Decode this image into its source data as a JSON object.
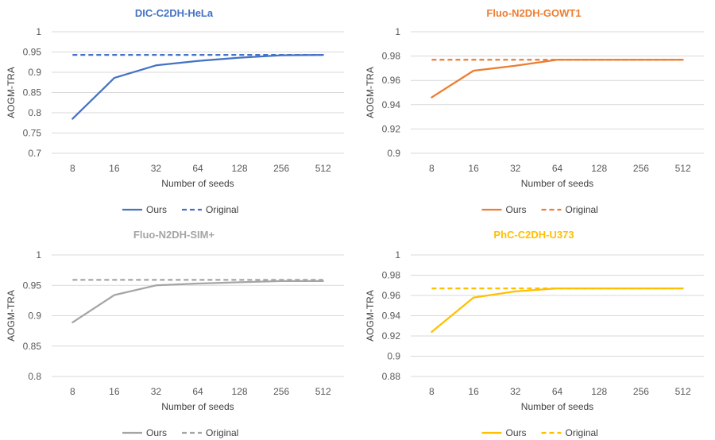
{
  "chart_data": [
    {
      "type": "line",
      "title": "DIC-C2DH-HeLa",
      "color": "#4472C4",
      "categories": [
        "8",
        "16",
        "32",
        "64",
        "128",
        "256",
        "512"
      ],
      "xlabel": "Number of seeds",
      "ylabel": "AOGM-TRA",
      "ylim": [
        0.7,
        1.0
      ],
      "yticks": [
        "0.7",
        "0.75",
        "0.8",
        "0.85",
        "0.9",
        "0.95",
        "1"
      ],
      "series": [
        {
          "name": "Ours",
          "style": "solid",
          "values": [
            0.785,
            0.886,
            0.917,
            0.928,
            0.936,
            0.942,
            0.943
          ]
        },
        {
          "name": "Original",
          "style": "dashed",
          "values": [
            0.943,
            0.943,
            0.943,
            0.943,
            0.943,
            0.943,
            0.943
          ]
        }
      ]
    },
    {
      "type": "line",
      "title": "Fluo-N2DH-GOWT1",
      "color": "#ED7D31",
      "categories": [
        "8",
        "16",
        "32",
        "64",
        "128",
        "256",
        "512"
      ],
      "xlabel": "Number of seeds",
      "ylabel": "AOGM-TRA",
      "ylim": [
        0.9,
        1.0
      ],
      "yticks": [
        "0.9",
        "0.92",
        "0.94",
        "0.96",
        "0.98",
        "1"
      ],
      "series": [
        {
          "name": "Ours",
          "style": "solid",
          "values": [
            0.946,
            0.968,
            0.972,
            0.977,
            0.977,
            0.977,
            0.977
          ]
        },
        {
          "name": "Original",
          "style": "dashed",
          "values": [
            0.977,
            0.977,
            0.977,
            0.977,
            0.977,
            0.977,
            0.977
          ]
        }
      ]
    },
    {
      "type": "line",
      "title": "Fluo-N2DH-SIM+",
      "color": "#A5A5A5",
      "categories": [
        "8",
        "16",
        "32",
        "64",
        "128",
        "256",
        "512"
      ],
      "xlabel": "Number of seeds",
      "ylabel": "AOGM-TRA",
      "ylim": [
        0.8,
        1.0
      ],
      "yticks": [
        "0.8",
        "0.85",
        "0.9",
        "0.95",
        "1"
      ],
      "series": [
        {
          "name": "Ours",
          "style": "solid",
          "values": [
            0.889,
            0.934,
            0.95,
            0.953,
            0.955,
            0.957,
            0.957
          ]
        },
        {
          "name": "Original",
          "style": "dashed",
          "values": [
            0.959,
            0.959,
            0.959,
            0.959,
            0.959,
            0.959,
            0.959
          ]
        }
      ]
    },
    {
      "type": "line",
      "title": "PhC-C2DH-U373",
      "color": "#FFC000",
      "categories": [
        "8",
        "16",
        "32",
        "64",
        "128",
        "256",
        "512"
      ],
      "xlabel": "Number of seeds",
      "ylabel": "AOGM-TRA",
      "ylim": [
        0.88,
        1.0
      ],
      "yticks": [
        "0.88",
        "0.9",
        "0.92",
        "0.94",
        "0.96",
        "0.98",
        "1"
      ],
      "series": [
        {
          "name": "Ours",
          "style": "solid",
          "values": [
            0.924,
            0.958,
            0.964,
            0.967,
            0.967,
            0.967,
            0.967
          ]
        },
        {
          "name": "Original",
          "style": "dashed",
          "values": [
            0.967,
            0.967,
            0.967,
            0.967,
            0.967,
            0.967,
            0.967
          ]
        }
      ]
    }
  ]
}
